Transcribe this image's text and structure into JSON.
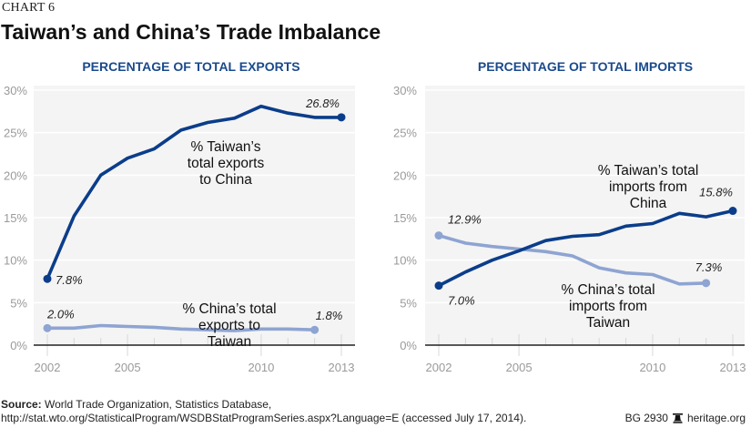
{
  "header": {
    "chart_number": "CHART 6",
    "title": "Taiwan’s and China’s Trade Imbalance"
  },
  "colors": {
    "dark_series": "#0b3d8a",
    "light_series": "#8ea4d2",
    "panel_title": "#1a4a8c",
    "plot_bg": "#f4f4f4",
    "gridline": "#ffffff",
    "axis": "#222222",
    "tick_text": "#9a9a9a"
  },
  "chart_data": [
    {
      "type": "line",
      "title": "PERCENTAGE OF TOTAL EXPORTS",
      "xlabel": "",
      "ylabel": "",
      "ylim": [
        0,
        30
      ],
      "xlim": [
        2002,
        2013
      ],
      "y_ticks": [
        "0%",
        "5%",
        "10%",
        "15%",
        "20%",
        "25%",
        "30%"
      ],
      "x_ticks": [
        "2002",
        "2005",
        "2010",
        "2013"
      ],
      "grid": true,
      "series": [
        {
          "name": "% Taiwan’s total exports to China",
          "label_lines": [
            "% Taiwan’s",
            "total exports",
            "to China"
          ],
          "style": "dark",
          "x": [
            2002,
            2003,
            2004,
            2005,
            2006,
            2007,
            2008,
            2009,
            2010,
            2011,
            2012,
            2013
          ],
          "values": [
            7.8,
            15.2,
            20.0,
            22.0,
            23.1,
            25.3,
            26.2,
            26.7,
            28.1,
            27.3,
            26.8,
            26.8
          ],
          "start_label": "7.8%",
          "end_label": "26.8%"
        },
        {
          "name": "% China’s total exports to Taiwan",
          "label_lines": [
            "% China’s total",
            "exports to",
            "Taiwan"
          ],
          "style": "light",
          "x": [
            2002,
            2003,
            2004,
            2005,
            2006,
            2007,
            2008,
            2009,
            2010,
            2011,
            2012
          ],
          "values": [
            2.0,
            2.0,
            2.3,
            2.2,
            2.1,
            1.9,
            1.8,
            1.7,
            1.9,
            1.9,
            1.8
          ],
          "start_label": "2.0%",
          "end_label": "1.8%"
        }
      ]
    },
    {
      "type": "line",
      "title": "PERCENTAGE OF TOTAL IMPORTS",
      "xlabel": "",
      "ylabel": "",
      "ylim": [
        0,
        30
      ],
      "xlim": [
        2002,
        2013
      ],
      "y_ticks": [
        "0%",
        "5%",
        "10%",
        "15%",
        "20%",
        "25%",
        "30%"
      ],
      "x_ticks": [
        "2002",
        "2005",
        "2010",
        "2013"
      ],
      "grid": true,
      "series": [
        {
          "name": "% Taiwan’s total imports from China",
          "label_lines": [
            "% Taiwan’s total",
            "imports from",
            "China"
          ],
          "style": "dark",
          "x": [
            2002,
            2003,
            2004,
            2005,
            2006,
            2007,
            2008,
            2009,
            2010,
            2011,
            2012,
            2013
          ],
          "values": [
            7.0,
            8.6,
            10.0,
            11.1,
            12.3,
            12.8,
            13.0,
            14.0,
            14.3,
            15.5,
            15.1,
            15.8
          ],
          "start_label": "7.0%",
          "end_label": "15.8%"
        },
        {
          "name": "% China’s total imports from Taiwan",
          "label_lines": [
            "% China’s total",
            "imports from",
            "Taiwan"
          ],
          "style": "light",
          "x": [
            2002,
            2003,
            2004,
            2005,
            2006,
            2007,
            2008,
            2009,
            2010,
            2011,
            2012
          ],
          "values": [
            12.9,
            12.0,
            11.6,
            11.3,
            11.0,
            10.5,
            9.1,
            8.5,
            8.3,
            7.2,
            7.3
          ],
          "start_label": "12.9%",
          "end_label": "7.3%"
        }
      ]
    }
  ],
  "footer": {
    "source_label": "Source:",
    "source_text": " World Trade Organization, Statistics Database,",
    "source_url_line": "http://stat.wto.org/StatisticalProgram/WSDBStatProgramSeries.aspx?Language=E (accessed July 17, 2014).",
    "report_id": "BG 2930",
    "logo_icon": "liberty-bell-icon",
    "site": "heritage.org"
  }
}
